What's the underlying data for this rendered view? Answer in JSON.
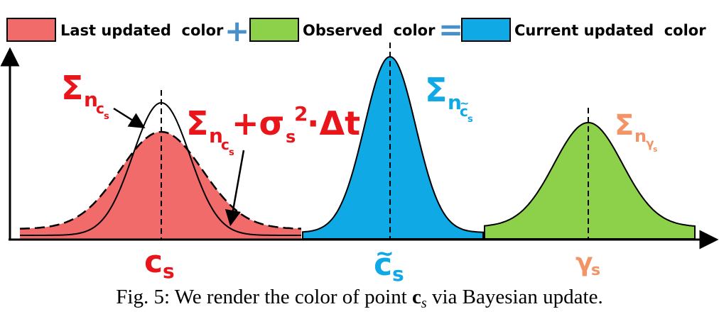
{
  "legend": {
    "items": [
      {
        "label": "Last updated  color",
        "color": "#f26b6b"
      },
      {
        "label": "Observed  color",
        "color": "#8dd04a"
      },
      {
        "label": "Current updated  color",
        "color": "#0fa9e6"
      }
    ],
    "plus_symbol": "+",
    "equals_symbol": "=",
    "operator_color": "#4a90c8"
  },
  "labels": {
    "sigma": "Σ",
    "n": "n",
    "c": "c",
    "s": "s",
    "plus_sigma": "+σ",
    "sup2": "2",
    "delta_t": "·Δt",
    "gamma": "γ",
    "tilde": "~"
  },
  "colors": {
    "red_fill": "#f26b6b",
    "red_text": "#e8151b",
    "blue_fill": "#0fa9e6",
    "blue_text": "#0fa9e6",
    "green_fill": "#8dd04a",
    "orange_text": "#f29467"
  },
  "caption": {
    "prefix": "Fig. 5: We render the color of point ",
    "var_c": "c",
    "var_s": "s",
    "suffix": " via Bayesian update."
  }
}
